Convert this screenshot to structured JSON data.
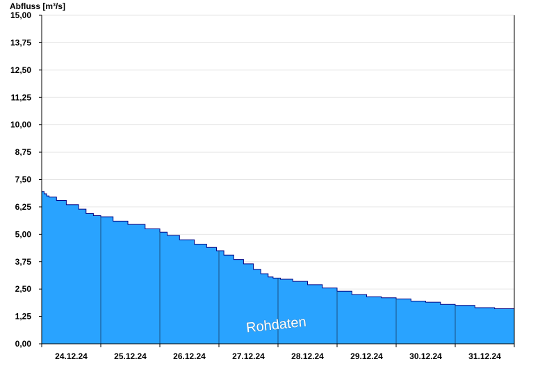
{
  "chart_data": {
    "type": "area",
    "ylabel": "Abfluss [m³/s]",
    "ylim": [
      0,
      15
    ],
    "yticks": [
      0,
      1.25,
      2.5,
      3.75,
      5.0,
      6.25,
      7.5,
      8.75,
      10.0,
      11.25,
      12.5,
      13.75,
      15.0
    ],
    "ytick_labels": [
      "0,00",
      "1,25",
      "2,50",
      "3,75",
      "5,00",
      "6,25",
      "7,50",
      "8,75",
      "10,00",
      "11,25",
      "12,50",
      "13,75",
      "15,00"
    ],
    "x_start": "2024-12-24",
    "x_end": "2025-01-01",
    "x_tick_labels": [
      "24.12.24",
      "25.12.24",
      "26.12.24",
      "27.12.24",
      "28.12.24",
      "29.12.24",
      "30.12.24",
      "31.12.24"
    ],
    "grid": true,
    "fill_color": "#29a3ff",
    "line_color": "#000080",
    "watermark": "Rohdaten",
    "series": [
      {
        "x": [
          "2024-12-24 00:00",
          "2024-12-24 01:00",
          "2024-12-24 02:00",
          "2024-12-24 03:00",
          "2024-12-24 06:00",
          "2024-12-24 10:00",
          "2024-12-24 15:00",
          "2024-12-24 18:00",
          "2024-12-24 21:00",
          "2024-12-25 00:00",
          "2024-12-25 05:00",
          "2024-12-25 11:00",
          "2024-12-25 18:00",
          "2024-12-26 00:00",
          "2024-12-26 03:00",
          "2024-12-26 08:00",
          "2024-12-26 14:00",
          "2024-12-26 19:00",
          "2024-12-26 23:00",
          "2024-12-27 02:00",
          "2024-12-27 06:00",
          "2024-12-27 10:00",
          "2024-12-27 14:00",
          "2024-12-27 17:00",
          "2024-12-27 20:00",
          "2024-12-27 22:00",
          "2024-12-28 01:00",
          "2024-12-28 06:00",
          "2024-12-28 12:00",
          "2024-12-28 18:00",
          "2024-12-29 00:00",
          "2024-12-29 06:00",
          "2024-12-29 12:00",
          "2024-12-29 18:00",
          "2024-12-30 00:00",
          "2024-12-30 06:00",
          "2024-12-30 12:00",
          "2024-12-30 18:00",
          "2024-12-31 00:00",
          "2024-12-31 08:00",
          "2024-12-31 16:00",
          "2024-12-31 23:59"
        ],
        "y": [
          6.95,
          6.85,
          6.75,
          6.7,
          6.55,
          6.35,
          6.15,
          5.95,
          5.85,
          5.8,
          5.6,
          5.45,
          5.25,
          5.1,
          4.95,
          4.75,
          4.55,
          4.4,
          4.25,
          4.05,
          3.85,
          3.65,
          3.4,
          3.2,
          3.05,
          3.0,
          2.95,
          2.85,
          2.7,
          2.55,
          2.4,
          2.25,
          2.15,
          2.1,
          2.05,
          1.95,
          1.9,
          1.8,
          1.75,
          1.65,
          1.6,
          1.55
        ]
      }
    ]
  }
}
